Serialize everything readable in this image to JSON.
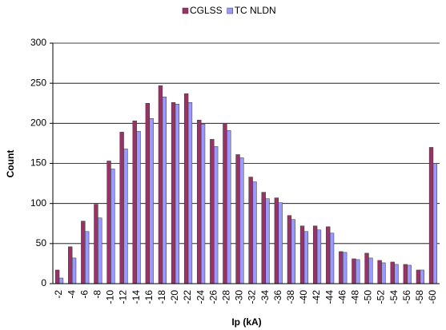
{
  "chart_data": {
    "type": "bar",
    "x_label": "Ip (kA)",
    "y_label": "Count",
    "categories": [
      "-2",
      "-4",
      "-6",
      "-8",
      "-10",
      "-12",
      "-14",
      "-16",
      "-18",
      "-20",
      "-22",
      "-24",
      "-26",
      "-28",
      "-30",
      "-32",
      "-34",
      "-36",
      "-38",
      "-40",
      "-42",
      "-44",
      "-46",
      "-48",
      "-50",
      "-52",
      "-54",
      "-56",
      "-58",
      "-60"
    ],
    "series": [
      {
        "name": "CGLSS",
        "color": "#993366",
        "values": [
          17,
          46,
          78,
          99,
          153,
          189,
          203,
          225,
          247,
          226,
          237,
          204,
          180,
          200,
          161,
          133,
          114,
          107,
          85,
          72,
          72,
          71,
          40,
          31,
          38,
          29,
          27,
          24,
          17,
          170
        ]
      },
      {
        "name": "TC NLDN",
        "color": "#9999FF",
        "values": [
          7,
          32,
          65,
          82,
          143,
          168,
          190,
          206,
          233,
          224,
          226,
          199,
          171,
          191,
          157,
          127,
          106,
          101,
          80,
          65,
          67,
          63,
          39,
          30,
          32,
          26,
          24,
          23,
          17,
          150
        ]
      }
    ],
    "ylim": [
      0,
      300
    ],
    "yticks": [
      0,
      50,
      100,
      150,
      200,
      250,
      300
    ],
    "grid": true,
    "legend": "top"
  }
}
